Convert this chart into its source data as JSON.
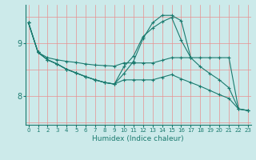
{
  "xlabel": "Humidex (Indice chaleur)",
  "bg_color": "#cceaea",
  "line_color": "#1a7a6e",
  "grid_color_v": "#e89090",
  "grid_color_h": "#e89090",
  "line1": {
    "x": [
      0,
      1,
      2,
      3,
      4,
      5,
      6,
      7,
      8,
      9,
      10,
      11,
      12,
      13,
      14,
      15,
      16,
      17,
      18,
      19,
      20,
      21,
      22,
      23
    ],
    "y": [
      9.38,
      8.82,
      8.72,
      8.68,
      8.65,
      8.63,
      8.6,
      8.58,
      8.57,
      8.56,
      8.62,
      8.62,
      8.62,
      8.62,
      8.67,
      8.72,
      8.72,
      8.72,
      8.72,
      8.72,
      8.72,
      8.72,
      7.75,
      7.72
    ]
  },
  "line2": {
    "x": [
      0,
      1,
      2,
      3,
      4,
      5,
      6,
      7,
      8,
      9,
      10,
      11,
      12,
      13,
      14,
      15,
      16,
      17,
      18,
      19,
      20,
      21,
      22,
      23
    ],
    "y": [
      9.38,
      8.82,
      8.68,
      8.6,
      8.5,
      8.43,
      8.36,
      8.3,
      8.25,
      8.22,
      8.3,
      8.3,
      8.3,
      8.3,
      8.35,
      8.4,
      8.32,
      8.25,
      8.18,
      8.1,
      8.02,
      7.95,
      7.75,
      7.72
    ]
  },
  "line3": {
    "x": [
      0,
      1,
      2,
      3,
      4,
      5,
      6,
      7,
      8,
      9,
      10,
      11,
      12,
      13,
      14,
      15,
      16,
      17,
      18,
      19,
      20,
      21,
      22,
      23
    ],
    "y": [
      9.38,
      8.82,
      8.68,
      8.6,
      8.5,
      8.43,
      8.36,
      8.3,
      8.25,
      8.22,
      8.55,
      8.75,
      9.12,
      9.28,
      9.4,
      9.48,
      9.05,
      8.72,
      8.55,
      8.42,
      8.3,
      8.15,
      7.75,
      7.72
    ]
  },
  "line4": {
    "x": [
      0,
      1,
      2,
      3,
      4,
      5,
      6,
      7,
      8,
      9,
      10,
      11,
      12,
      13,
      14,
      15,
      16,
      17
    ],
    "y": [
      9.38,
      8.82,
      8.68,
      8.6,
      8.5,
      8.43,
      8.36,
      8.3,
      8.25,
      8.22,
      8.42,
      8.65,
      9.08,
      9.38,
      9.52,
      9.52,
      9.42,
      8.72
    ]
  },
  "yticks": [
    8.0,
    9.0
  ],
  "ylim": [
    7.45,
    9.72
  ],
  "xlim": [
    -0.3,
    23.3
  ],
  "xticks": [
    0,
    1,
    2,
    3,
    4,
    5,
    6,
    7,
    8,
    9,
    10,
    11,
    12,
    13,
    14,
    15,
    16,
    17,
    18,
    19,
    20,
    21,
    22,
    23
  ],
  "xlabel_fontsize": 6.5,
  "ytick_fontsize": 7,
  "xtick_fontsize": 5.0
}
